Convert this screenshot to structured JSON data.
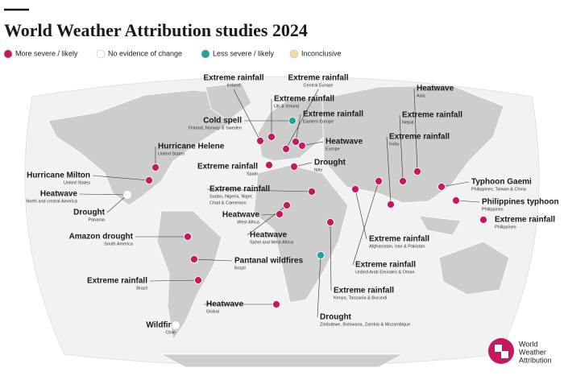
{
  "header": {
    "title": "World Weather Attribution studies 2024"
  },
  "legend": [
    {
      "label": "More severe / likely",
      "color": "#c8175d"
    },
    {
      "label": "No evidence of change",
      "color": "#ffffff"
    },
    {
      "label": "Less severe / likely",
      "color": "#1fa39a"
    },
    {
      "label": "Inconclusive",
      "color": "#f3d9a6"
    }
  ],
  "studies": [
    {
      "title": "Extreme rainfall",
      "subtitle": [
        "Ireland"
      ]
    },
    {
      "title": "Extreme rainfall",
      "subtitle": [
        "Central Europe"
      ]
    },
    {
      "title": "Extreme rainfall",
      "subtitle": [
        "UK & Ireland"
      ]
    },
    {
      "title": "Cold spell",
      "subtitle": [
        "Finland, Norway & Sweden"
      ]
    },
    {
      "title": "Extreme rainfall",
      "subtitle": [
        "Eastern Europe"
      ]
    },
    {
      "title": "Heatwave",
      "subtitle": [
        "Asia"
      ]
    },
    {
      "title": "Extreme rainfall",
      "subtitle": [
        "Nepal"
      ]
    },
    {
      "title": "Extreme rainfall",
      "subtitle": [
        "India"
      ]
    },
    {
      "title": "Heatwave",
      "subtitle": [
        "Europe"
      ]
    },
    {
      "title": "Hurricane Helene",
      "subtitle": [
        "United States"
      ]
    },
    {
      "title": "Extreme rainfall",
      "subtitle": [
        "Spain"
      ]
    },
    {
      "title": "Drought",
      "subtitle": [
        "Italy"
      ]
    },
    {
      "title": "Hurricane Milton",
      "subtitle": [
        "United States"
      ]
    },
    {
      "title": "Typhoon Gaemi",
      "subtitle": [
        "Philippines, Taiwan & China"
      ]
    },
    {
      "title": "Extreme rainfall",
      "subtitle": [
        "Sudan, Nigeria, Niger,",
        "Chad & Cameroon"
      ]
    },
    {
      "title": "Heatwave",
      "subtitle": [
        "North and central America"
      ]
    },
    {
      "title": "Philippines typhoon",
      "subtitle": [
        "Philippines"
      ]
    },
    {
      "title": "Drought",
      "subtitle": [
        "Panama"
      ]
    },
    {
      "title": "Heatwave",
      "subtitle": [
        "West Africa"
      ]
    },
    {
      "title": "Extreme rainfall",
      "subtitle": [
        "Philippines"
      ]
    },
    {
      "title": "Heatwave",
      "subtitle": [
        "Sahel and West Africa"
      ]
    },
    {
      "title": "Amazon drought",
      "subtitle": [
        "South America"
      ]
    },
    {
      "title": "Extreme rainfall",
      "subtitle": [
        "Afghanistan, Iran & Pakistan"
      ]
    },
    {
      "title": "Pantanal wildfires",
      "subtitle": [
        "Brazil"
      ]
    },
    {
      "title": "Extreme rainfall",
      "subtitle": [
        "United Arab Emirates & Oman"
      ]
    },
    {
      "title": "Extreme rainfall",
      "subtitle": [
        "Brazil"
      ]
    },
    {
      "title": "Extreme rainfall",
      "subtitle": [
        "Kenya, Tanzania & Burundi"
      ]
    },
    {
      "title": "Heatwave",
      "subtitle": [
        "Global"
      ]
    },
    {
      "title": "Drought",
      "subtitle": [
        "Zimbabwe, Botswana, Zambia & Mozambique"
      ]
    },
    {
      "title": "Wildfire",
      "subtitle": [
        "Chile"
      ]
    }
  ],
  "logo": {
    "lines": [
      "World",
      "Weather",
      "Attribution"
    ]
  }
}
